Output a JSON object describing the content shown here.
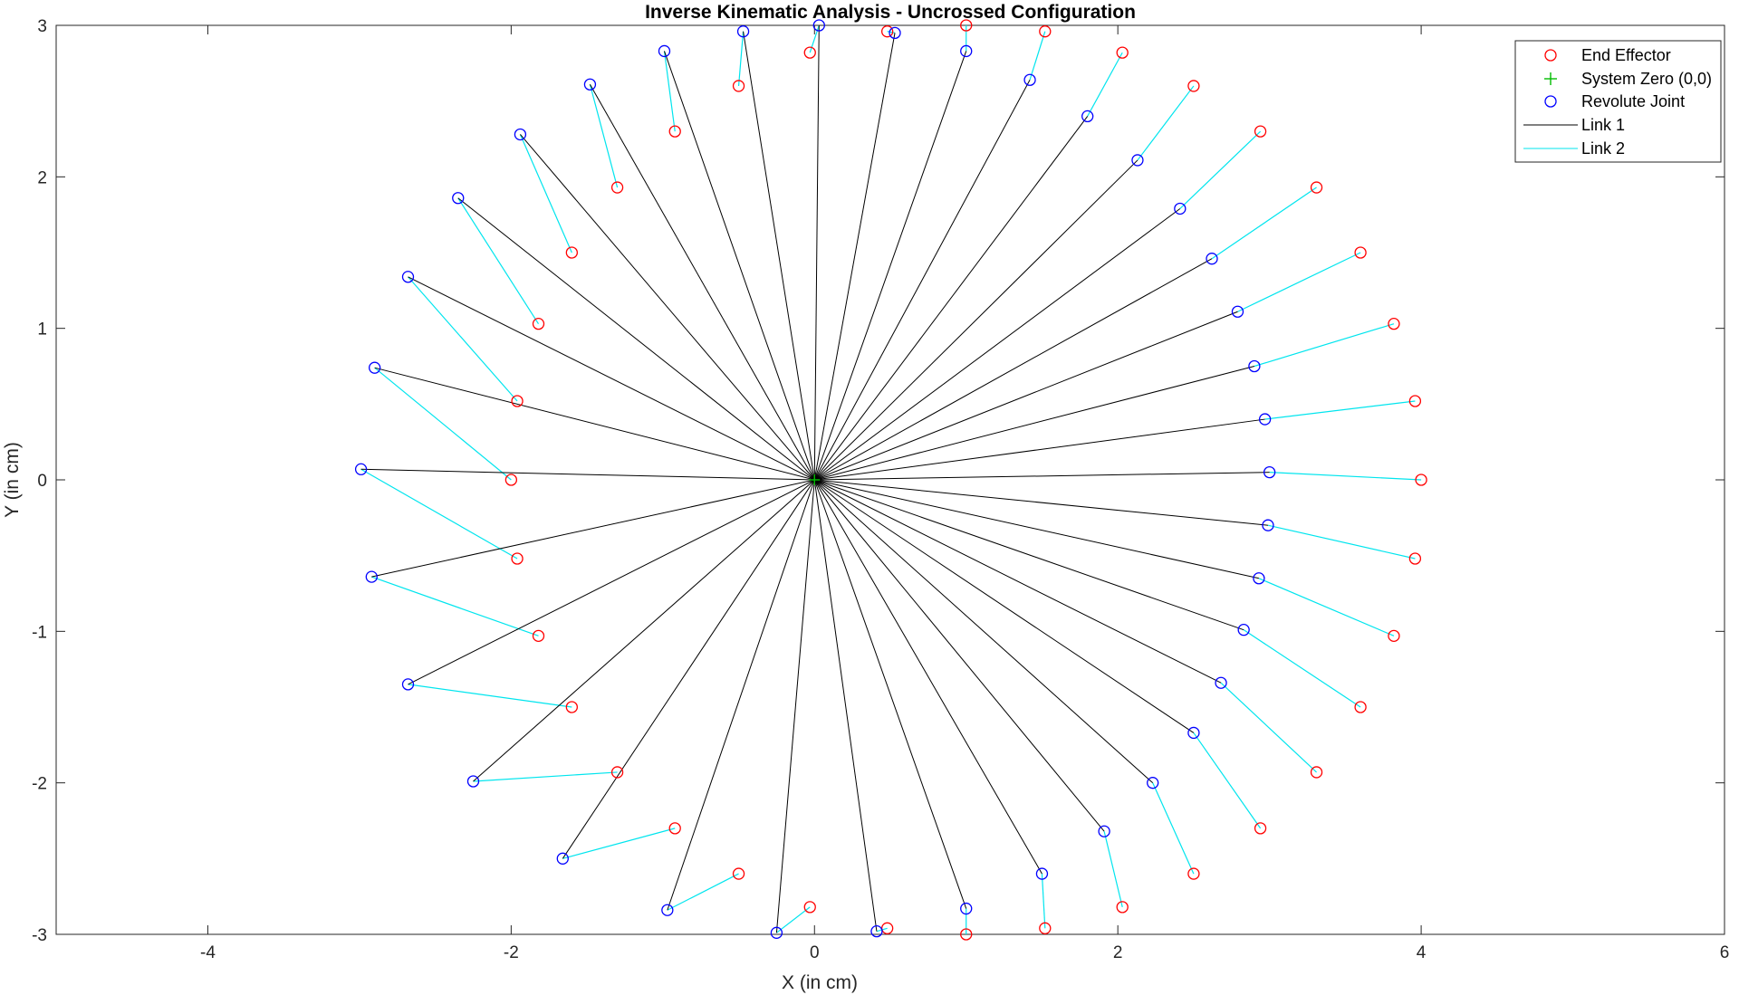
{
  "chart_data": {
    "type": "scatter",
    "title": "Inverse Kinematic Analysis - Uncrossed Configuration",
    "xlabel": "X (in cm)",
    "ylabel": "Y (in cm)",
    "xlim": [
      -5,
      6
    ],
    "ylim": [
      -3,
      3
    ],
    "xticks": [
      -4,
      -2,
      0,
      2,
      4,
      6
    ],
    "yticks": [
      -3,
      -2,
      -1,
      0,
      1,
      2,
      3
    ],
    "grid": false,
    "legend_location": "top-right",
    "legend": [
      "End Effector",
      "System Zero (0,0)",
      "Revolute Joint",
      "Link 1",
      "Link 2"
    ],
    "colors": {
      "end_effector": "#ff0000",
      "system_zero": "#00bb00",
      "revolute_joint": "#0000ff",
      "link1": "#000000",
      "link2": "#00e5ee"
    },
    "end_effector": [
      [
        4.0,
        0.0
      ],
      [
        3.96,
        -0.52
      ],
      [
        3.82,
        -1.03
      ],
      [
        3.6,
        -1.5
      ],
      [
        3.31,
        -1.93
      ],
      [
        2.94,
        -2.3
      ],
      [
        2.5,
        -2.6
      ],
      [
        2.03,
        -2.82
      ],
      [
        1.52,
        -2.96
      ],
      [
        1.0,
        -3.0
      ],
      [
        0.48,
        -2.96
      ],
      [
        -0.03,
        -2.82
      ],
      [
        -0.5,
        -2.6
      ],
      [
        -0.92,
        -2.3
      ],
      [
        -1.3,
        -1.93
      ],
      [
        -1.6,
        -1.5
      ],
      [
        -1.82,
        -1.03
      ],
      [
        -1.96,
        -0.52
      ],
      [
        -2.0,
        0.0
      ],
      [
        -1.96,
        0.52
      ],
      [
        -1.82,
        1.03
      ],
      [
        -1.6,
        1.5
      ],
      [
        -1.3,
        1.93
      ],
      [
        -0.92,
        2.3
      ],
      [
        -0.5,
        2.6
      ],
      [
        -0.03,
        2.82
      ],
      [
        0.48,
        2.96
      ],
      [
        1.0,
        3.0
      ],
      [
        1.52,
        2.96
      ],
      [
        2.03,
        2.82
      ],
      [
        2.5,
        2.6
      ],
      [
        2.94,
        2.3
      ],
      [
        3.31,
        1.93
      ],
      [
        3.6,
        1.5
      ],
      [
        3.82,
        1.03
      ],
      [
        3.96,
        0.52
      ]
    ],
    "revolute_joint": [
      [
        3.0,
        0.05
      ],
      [
        2.99,
        -0.3
      ],
      [
        2.93,
        -0.65
      ],
      [
        2.83,
        -0.99
      ],
      [
        2.68,
        -1.34
      ],
      [
        2.5,
        -1.67
      ],
      [
        2.23,
        -2.0
      ],
      [
        1.91,
        -2.32
      ],
      [
        1.5,
        -2.6
      ],
      [
        1.0,
        -2.83
      ],
      [
        0.41,
        -2.98
      ],
      [
        -0.25,
        -2.99
      ],
      [
        -0.97,
        -2.84
      ],
      [
        -1.66,
        -2.5
      ],
      [
        -2.25,
        -1.99
      ],
      [
        -2.68,
        -1.35
      ],
      [
        -2.92,
        -0.64
      ],
      [
        -2.99,
        0.07
      ],
      [
        -2.9,
        0.74
      ],
      [
        -2.68,
        1.34
      ],
      [
        -2.35,
        1.86
      ],
      [
        -1.94,
        2.28
      ],
      [
        -1.48,
        2.61
      ],
      [
        -0.99,
        2.83
      ],
      [
        -0.47,
        2.96
      ],
      [
        0.03,
        3.0
      ],
      [
        0.53,
        2.95
      ],
      [
        1.0,
        2.83
      ],
      [
        1.42,
        2.64
      ],
      [
        1.8,
        2.4
      ],
      [
        2.13,
        2.11
      ],
      [
        2.41,
        1.79
      ],
      [
        2.62,
        1.46
      ],
      [
        2.79,
        1.11
      ],
      [
        2.9,
        0.75
      ],
      [
        2.97,
        0.4
      ]
    ]
  }
}
